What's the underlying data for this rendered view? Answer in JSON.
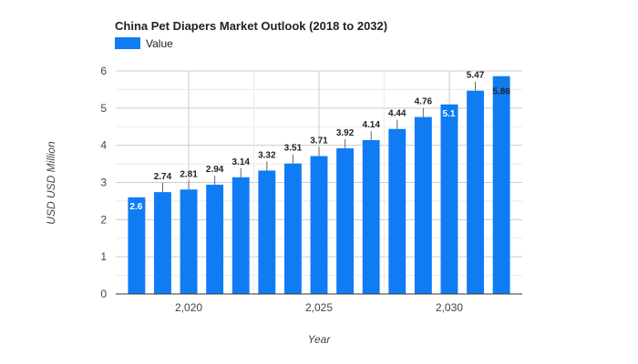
{
  "chart_data": {
    "type": "bar",
    "title": "China Pet Diapers Market Outlook (2018 to 2032)",
    "xlabel": "Year",
    "ylabel": "USD USD Million",
    "ylim": [
      0,
      6
    ],
    "yticks": [
      "0",
      "1",
      "2",
      "3",
      "4",
      "5",
      "6"
    ],
    "xticks": [
      {
        "x": 2020,
        "label": "2,020"
      },
      {
        "x": 2025,
        "label": "2,025"
      },
      {
        "x": 2030,
        "label": "2,030"
      }
    ],
    "grid": true,
    "legend_position": "top-left",
    "series": [
      {
        "name": "Value",
        "color": "#0f7cf4",
        "x": [
          2018,
          2019,
          2020,
          2021,
          2022,
          2023,
          2024,
          2025,
          2026,
          2027,
          2028,
          2029,
          2030,
          2031,
          2032
        ],
        "values": [
          2.6,
          2.74,
          2.81,
          2.94,
          3.14,
          3.32,
          3.51,
          3.71,
          3.92,
          4.14,
          4.44,
          4.76,
          5.1,
          5.47,
          5.86
        ],
        "labels": [
          "2.6",
          "2.74",
          "2.81",
          "2.94",
          "3.14",
          "3.32",
          "3.51",
          "3.71",
          "3.92",
          "4.14",
          "4.44",
          "4.76",
          "5.1",
          "5.47",
          "5.86"
        ]
      }
    ]
  }
}
